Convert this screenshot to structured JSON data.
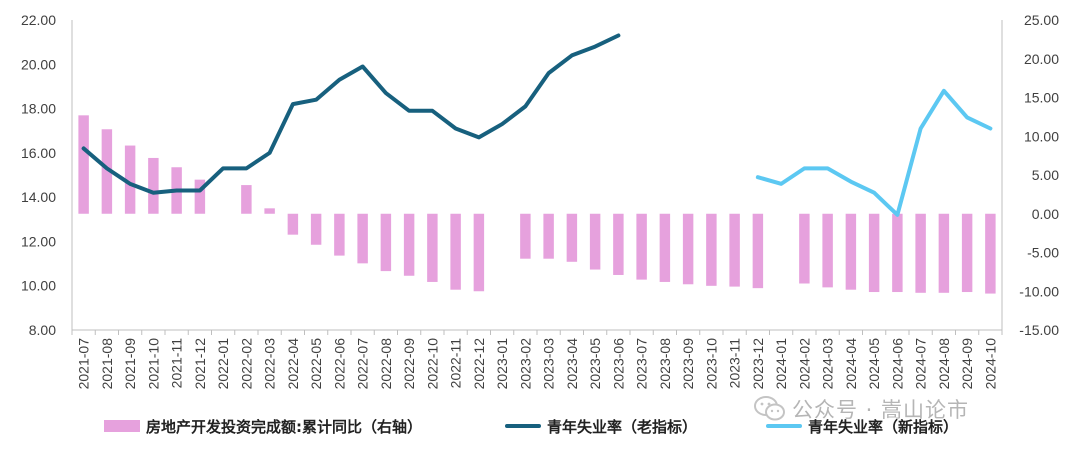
{
  "chart_data": {
    "type": "bar+line",
    "categories": [
      "2021-07",
      "2021-08",
      "2021-09",
      "2021-10",
      "2021-11",
      "2021-12",
      "2022-01",
      "2022-02",
      "2022-03",
      "2022-04",
      "2022-05",
      "2022-06",
      "2022-07",
      "2022-08",
      "2022-09",
      "2022-10",
      "2022-11",
      "2022-12",
      "2023-01",
      "2023-02",
      "2023-03",
      "2023-04",
      "2023-05",
      "2023-06",
      "2023-07",
      "2023-08",
      "2023-09",
      "2023-10",
      "2023-11",
      "2023-12",
      "2024-01",
      "2024-02",
      "2024-03",
      "2024-04",
      "2024-05",
      "2024-06",
      "2024-07",
      "2024-08",
      "2024-09",
      "2024-10"
    ],
    "left_axis": {
      "min": 8,
      "max": 22,
      "ticks": [
        "8.00",
        "10.00",
        "12.00",
        "14.00",
        "16.00",
        "18.00",
        "20.00",
        "22.00"
      ]
    },
    "right_axis": {
      "min": -15,
      "max": 25,
      "ticks": [
        "-15.00",
        "-10.00",
        "-5.00",
        "0.00",
        "5.00",
        "10.00",
        "15.00",
        "20.00",
        "25.00"
      ]
    },
    "bars": {
      "name": "房地产开发投资完成额:累计同比（右轴）",
      "axis": "right",
      "color": "#e6a1dd",
      "values": [
        12.7,
        10.9,
        8.8,
        7.2,
        6.0,
        4.4,
        null,
        3.7,
        0.7,
        -2.7,
        -4.0,
        -5.4,
        -6.4,
        -7.4,
        -8.0,
        -8.8,
        -9.8,
        -10.0,
        null,
        -5.8,
        -5.8,
        -6.2,
        -7.2,
        -7.9,
        -8.5,
        -8.8,
        -9.1,
        -9.3,
        -9.4,
        -9.6,
        null,
        -9.0,
        -9.5,
        -9.8,
        -10.1,
        -10.1,
        -10.2,
        -10.2,
        -10.1,
        -10.3
      ]
    },
    "series": [
      {
        "name": "青年失业率（老指标）",
        "axis": "left",
        "color": "#17607e",
        "values": [
          16.2,
          15.3,
          14.6,
          14.2,
          14.3,
          14.3,
          15.3,
          15.3,
          16.0,
          18.2,
          18.4,
          19.3,
          19.9,
          18.7,
          17.9,
          17.9,
          17.1,
          16.7,
          17.3,
          18.1,
          19.6,
          20.4,
          20.8,
          21.3,
          null,
          null,
          null,
          null,
          null,
          null,
          null,
          null,
          null,
          null,
          null,
          null,
          null,
          null,
          null,
          null
        ]
      },
      {
        "name": "青年失业率（新指标）",
        "axis": "left",
        "color": "#5cc8f2",
        "values": [
          null,
          null,
          null,
          null,
          null,
          null,
          null,
          null,
          null,
          null,
          null,
          null,
          null,
          null,
          null,
          null,
          null,
          null,
          null,
          null,
          null,
          null,
          null,
          null,
          null,
          null,
          null,
          null,
          null,
          14.9,
          14.6,
          15.3,
          15.3,
          14.7,
          14.2,
          13.2,
          17.1,
          18.8,
          17.6,
          17.1
        ]
      }
    ]
  },
  "legend": {
    "bar_label": "房地产开发投资完成额:累计同比（右轴）",
    "line_old_label": "青年失业率（老指标）",
    "line_new_label": "青年失业率（新指标）"
  },
  "watermark": {
    "text": "公众号 · 嵩山论市"
  }
}
